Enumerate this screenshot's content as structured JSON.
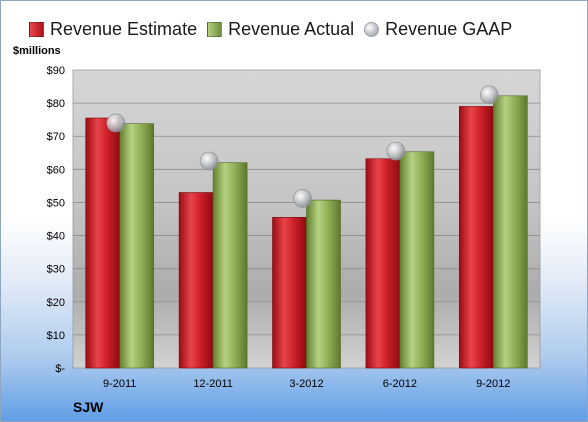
{
  "chart_data": {
    "type": "bar",
    "title": "",
    "xlabel": "",
    "ylabel": "$millions",
    "company": "SJW",
    "categories": [
      "9-2011",
      "12-2011",
      "3-2012",
      "6-2012",
      "9-2012"
    ],
    "ylim": [
      0,
      90
    ],
    "y_ticks": [
      {
        "value": 0,
        "label": "$-"
      },
      {
        "value": 10,
        "label": "$10"
      },
      {
        "value": 20,
        "label": "$20"
      },
      {
        "value": 30,
        "label": "$30"
      },
      {
        "value": 40,
        "label": "$40"
      },
      {
        "value": 50,
        "label": "$50"
      },
      {
        "value": 60,
        "label": "$60"
      },
      {
        "value": 70,
        "label": "$70"
      },
      {
        "value": 80,
        "label": "$80"
      },
      {
        "value": 90,
        "label": "$90"
      }
    ],
    "grid": true,
    "legend_position": "top",
    "series": [
      {
        "name": "Revenue Estimate",
        "kind": "bar",
        "color": "#c8141c",
        "values": [
          75.5,
          53.0,
          45.5,
          63.2,
          79.0
        ]
      },
      {
        "name": "Revenue Actual",
        "kind": "bar",
        "color": "#8aab4f",
        "values": [
          73.8,
          62.0,
          50.7,
          65.3,
          82.2
        ]
      },
      {
        "name": "Revenue GAAP",
        "kind": "marker",
        "color": "#b9bcc0",
        "values": [
          74.0,
          62.5,
          51.2,
          65.5,
          82.5
        ]
      }
    ]
  }
}
